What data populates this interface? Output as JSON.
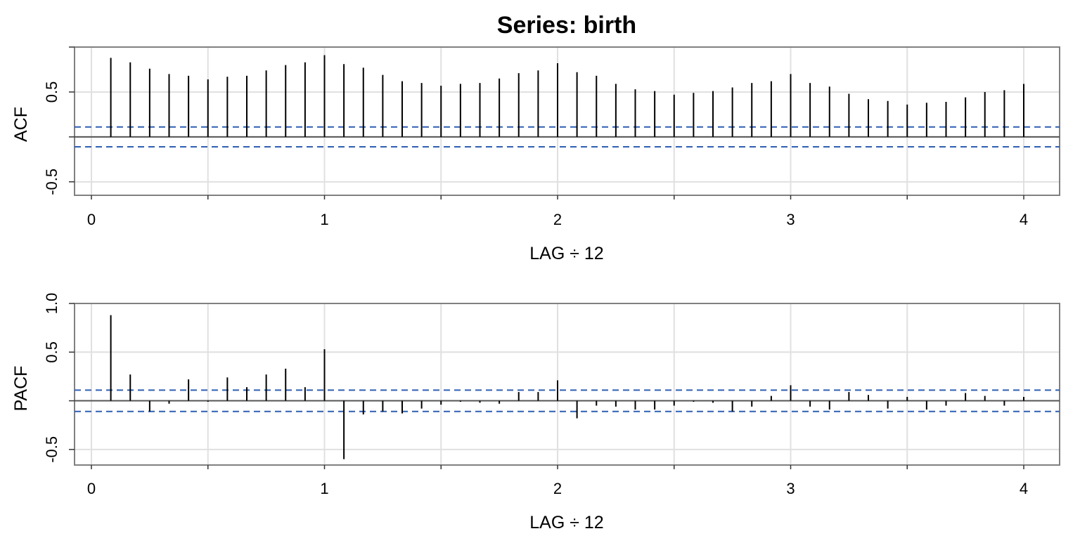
{
  "title": "Series:  birth",
  "colors": {
    "bars": "#000000",
    "ci": "#2f5fb3",
    "grid": "#e0e0e0",
    "frame": "#808080",
    "zero": "#555555"
  },
  "chart_data": [
    {
      "type": "bar",
      "name": "acf",
      "ylabel": "ACF",
      "xlabel": "LAG ÷ 12",
      "xlim": [
        0,
        4
      ],
      "ylim": [
        -0.65,
        1.0
      ],
      "xticks": [
        "0",
        "1",
        "2",
        "3",
        "4"
      ],
      "yticks": [
        "-0.5",
        "0.5"
      ],
      "ci": 0.11,
      "lags": [
        0.0833,
        0.1667,
        0.25,
        0.3333,
        0.4167,
        0.5,
        0.5833,
        0.6667,
        0.75,
        0.8333,
        0.9167,
        1.0,
        1.0833,
        1.1667,
        1.25,
        1.3333,
        1.4167,
        1.5,
        1.5833,
        1.6667,
        1.75,
        1.8333,
        1.9167,
        2.0,
        2.0833,
        2.1667,
        2.25,
        2.3333,
        2.4167,
        2.5,
        2.5833,
        2.6667,
        2.75,
        2.8333,
        2.9167,
        3.0,
        3.0833,
        3.1667,
        3.25,
        3.3333,
        3.4167,
        3.5,
        3.5833,
        3.6667,
        3.75,
        3.8333,
        3.9167,
        4.0
      ],
      "values": [
        0.88,
        0.83,
        0.76,
        0.7,
        0.68,
        0.64,
        0.67,
        0.68,
        0.74,
        0.8,
        0.83,
        0.91,
        0.81,
        0.77,
        0.69,
        0.62,
        0.6,
        0.57,
        0.59,
        0.6,
        0.65,
        0.71,
        0.74,
        0.82,
        0.72,
        0.68,
        0.59,
        0.53,
        0.51,
        0.47,
        0.49,
        0.51,
        0.55,
        0.6,
        0.62,
        0.7,
        0.6,
        0.56,
        0.48,
        0.42,
        0.4,
        0.36,
        0.38,
        0.39,
        0.44,
        0.5,
        0.52,
        0.59
      ]
    },
    {
      "type": "bar",
      "name": "pacf",
      "ylabel": "PACF",
      "xlabel": "LAG ÷ 12",
      "xlim": [
        0,
        4
      ],
      "ylim": [
        -0.66,
        1.0
      ],
      "xticks": [
        "0",
        "1",
        "2",
        "3",
        "4"
      ],
      "yticks": [
        "-0.5",
        "0.5",
        "1.0"
      ],
      "ci": 0.11,
      "lags": [
        0.0833,
        0.1667,
        0.25,
        0.3333,
        0.4167,
        0.5,
        0.5833,
        0.6667,
        0.75,
        0.8333,
        0.9167,
        1.0,
        1.0833,
        1.1667,
        1.25,
        1.3333,
        1.4167,
        1.5,
        1.5833,
        1.6667,
        1.75,
        1.8333,
        1.9167,
        2.0,
        2.0833,
        2.1667,
        2.25,
        2.3333,
        2.4167,
        2.5,
        2.5833,
        2.6667,
        2.75,
        2.8333,
        2.9167,
        3.0,
        3.0833,
        3.1667,
        3.25,
        3.3333,
        3.4167,
        3.5,
        3.5833,
        3.6667,
        3.75,
        3.8333,
        3.9167,
        4.0
      ],
      "values": [
        0.88,
        0.27,
        -0.11,
        -0.03,
        0.22,
        -0.01,
        0.24,
        0.14,
        0.27,
        0.33,
        0.14,
        0.53,
        -0.6,
        -0.14,
        -0.11,
        -0.13,
        -0.08,
        -0.04,
        -0.01,
        -0.02,
        -0.03,
        0.09,
        0.09,
        0.21,
        -0.18,
        -0.05,
        -0.06,
        -0.09,
        -0.09,
        -0.05,
        -0.01,
        -0.02,
        -0.11,
        -0.06,
        0.05,
        0.16,
        -0.06,
        -0.09,
        0.09,
        0.06,
        -0.08,
        0.04,
        -0.09,
        -0.05,
        0.08,
        0.05,
        -0.05,
        0.04
      ]
    }
  ]
}
